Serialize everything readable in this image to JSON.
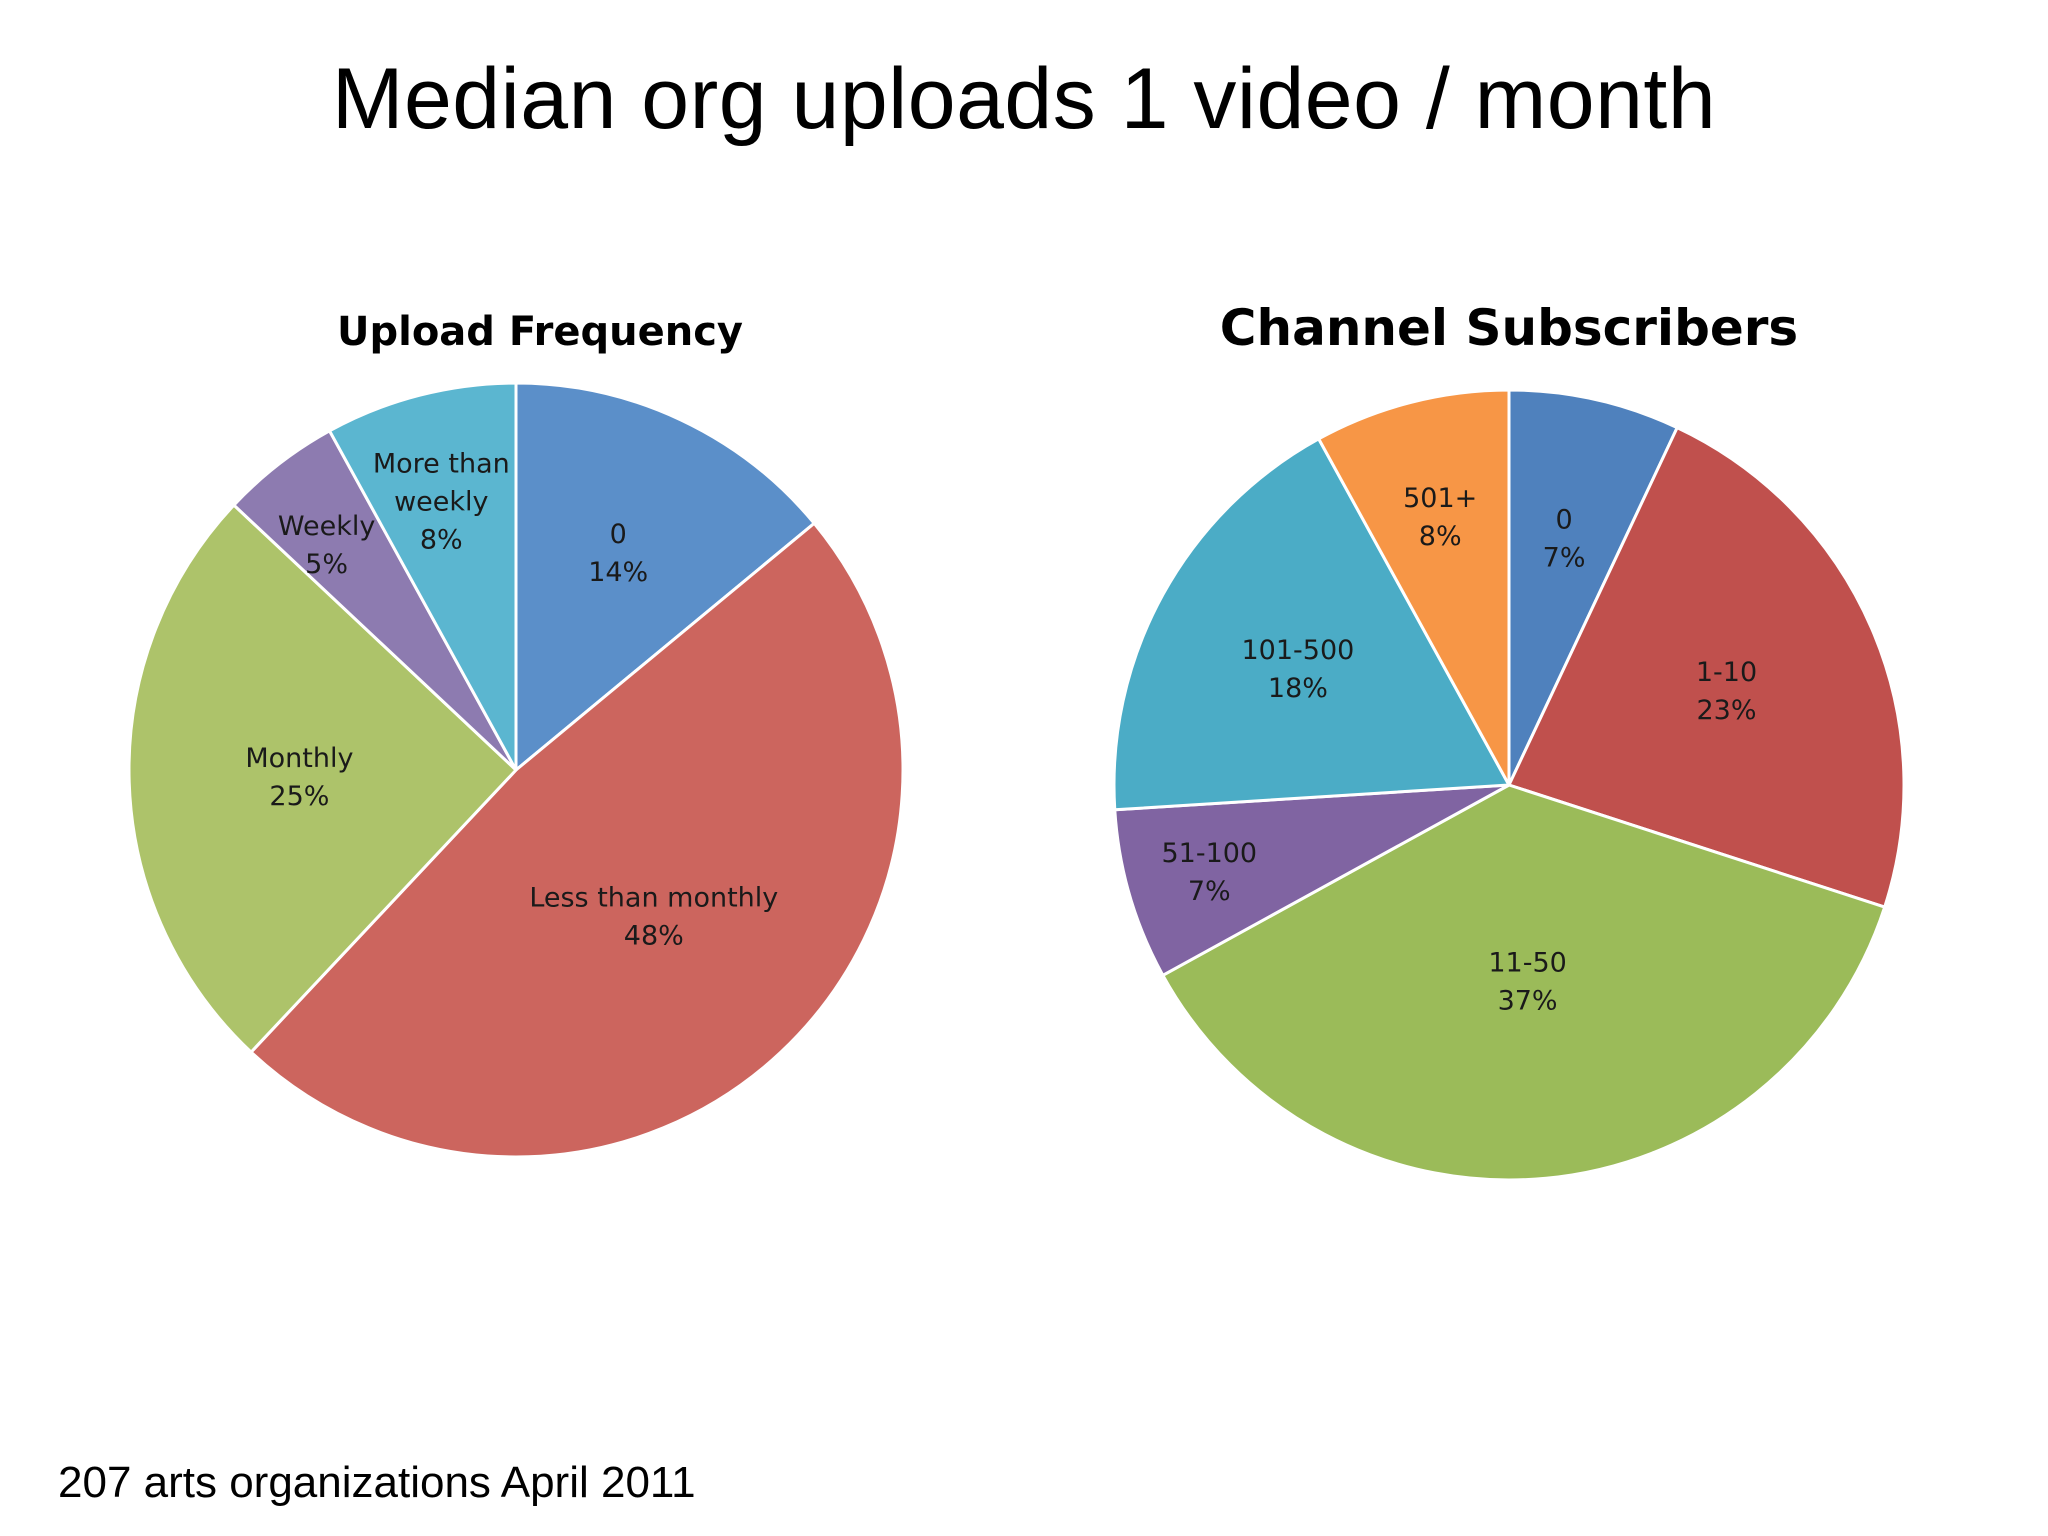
{
  "slide": {
    "title": "Median org uploads 1 video / month",
    "footnote": "207 arts organizations April 2011"
  },
  "chart_data": [
    {
      "type": "pie",
      "title": "Upload Frequency",
      "slices": [
        {
          "label": "0",
          "value": 14,
          "value_label": "14%",
          "color": "#5b8fc9"
        },
        {
          "label": "Less than monthly",
          "value": 48,
          "value_label": "48%",
          "color": "#cc655e"
        },
        {
          "label": "Monthly",
          "value": 25,
          "value_label": "25%",
          "color": "#adc36a"
        },
        {
          "label": "Weekly",
          "value": 5,
          "value_label": "5%",
          "color": "#8d7bb0"
        },
        {
          "label": "More than weekly",
          "value": 8,
          "value_label": "8%",
          "color": "#5bb6d0"
        }
      ]
    },
    {
      "type": "pie",
      "title": "Channel Subscribers",
      "slices": [
        {
          "label": "0",
          "value": 7,
          "value_label": "7%",
          "color": "#4f81bd"
        },
        {
          "label": "1-10",
          "value": 23,
          "value_label": "23%",
          "color": "#c0504d"
        },
        {
          "label": "11-50",
          "value": 37,
          "value_label": "37%",
          "color": "#9bbb59"
        },
        {
          "label": "51-100",
          "value": 7,
          "value_label": "7%",
          "color": "#8064a2"
        },
        {
          "label": "101-500",
          "value": 18,
          "value_label": "18%",
          "color": "#4bacc6"
        },
        {
          "label": "501+",
          "value": 8,
          "value_label": "8%",
          "color": "#f79646"
        }
      ]
    }
  ]
}
